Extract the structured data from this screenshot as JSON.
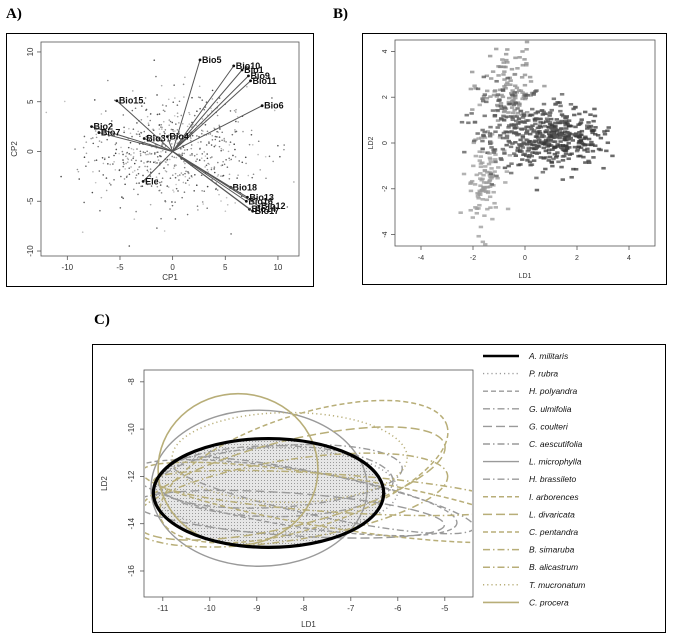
{
  "panels": {
    "a_tag": "A)",
    "b_tag": "B)",
    "c_tag": "C)"
  },
  "chart_data": [
    {
      "type": "scatter",
      "panel": "A",
      "title": "",
      "xlabel": "CP1",
      "ylabel": "CP2",
      "xlim": [
        -12.5,
        12
      ],
      "ylim": [
        -10.5,
        11
      ],
      "xticks": [
        -10,
        -5,
        0,
        5,
        10
      ],
      "yticks": [
        -10,
        -5,
        0,
        5,
        10
      ],
      "grid": false,
      "biplot_vectors": [
        {
          "label": "Bio5",
          "x": 2.6,
          "y": 9.2
        },
        {
          "label": "Bio10",
          "x": 5.8,
          "y": 8.6
        },
        {
          "label": "Bio1",
          "x": 6.6,
          "y": 8.2
        },
        {
          "label": "Bio9",
          "x": 7.2,
          "y": 7.6
        },
        {
          "label": "Bio11",
          "x": 7.4,
          "y": 7.1
        },
        {
          "label": "Bio6",
          "x": 8.5,
          "y": 4.6
        },
        {
          "label": "Bio15",
          "x": -5.3,
          "y": 5.1
        },
        {
          "label": "Bio2",
          "x": -7.7,
          "y": 2.5
        },
        {
          "label": "Bio7",
          "x": -7.0,
          "y": 1.9
        },
        {
          "label": "Bio3",
          "x": -2.7,
          "y": 1.3
        },
        {
          "label": "Bio4",
          "x": -0.5,
          "y": 1.5
        },
        {
          "label": "Ele",
          "x": -2.8,
          "y": -3.0
        },
        {
          "label": "Bio18",
          "x": 5.5,
          "y": -3.6
        },
        {
          "label": "Bio13",
          "x": 7.1,
          "y": -4.6
        },
        {
          "label": "Bio16",
          "x": 7.0,
          "y": -5.0
        },
        {
          "label": "Bio12",
          "x": 8.2,
          "y": -5.5
        },
        {
          "label": "Bio14",
          "x": 7.3,
          "y": -5.8
        },
        {
          "label": "Bio17",
          "x": 7.6,
          "y": -6.0
        }
      ],
      "point_cloud": {
        "center": [
          0,
          0
        ],
        "spread": [
          4.0,
          2.8
        ],
        "count": 650
      }
    },
    {
      "type": "scatter",
      "panel": "B",
      "title": "",
      "xlabel": "LD1",
      "ylabel": "LD2",
      "xlim": [
        -5,
        5
      ],
      "ylim": [
        -4.5,
        4.5
      ],
      "xticks": [
        -4,
        -2,
        0,
        2,
        4
      ],
      "yticks": [
        -4,
        -2,
        0,
        2,
        4
      ],
      "grid": false,
      "point_clusters": [
        {
          "center": [
            1.2,
            0.2
          ],
          "spread": [
            0.9,
            0.6
          ],
          "count": 320,
          "shade": "#3a3a3a"
        },
        {
          "center": [
            -0.6,
            2.3
          ],
          "spread": [
            0.6,
            0.9
          ],
          "count": 120,
          "shade": "#8a8a8a"
        },
        {
          "center": [
            -1.6,
            -1.6
          ],
          "spread": [
            0.35,
            1.1
          ],
          "count": 110,
          "shade": "#9a9a9a"
        },
        {
          "center": [
            -0.1,
            0.6
          ],
          "spread": [
            1.0,
            0.8
          ],
          "count": 200,
          "shade": "#555555"
        }
      ]
    },
    {
      "type": "ellipse",
      "panel": "C",
      "title": "",
      "xlabel": "LD1",
      "ylabel": "LD2",
      "xlim": [
        -11.4,
        -4.4
      ],
      "ylim": [
        -17.1,
        -7.5
      ],
      "xticks": [
        -11,
        -10,
        -9,
        -8,
        -7,
        -6,
        -5
      ],
      "yticks": [
        -8,
        -10,
        -12,
        -14,
        -16
      ],
      "grid": false,
      "legend_position": "right",
      "series": [
        {
          "name": "A. militaris",
          "style": "solid",
          "color": "#000000",
          "width": 3.2,
          "cx": -8.75,
          "cy": -12.7,
          "rx": 2.45,
          "ry": 2.3,
          "angle": 0,
          "filled": true
        },
        {
          "name": "P. rubra",
          "style": "dotted",
          "color": "#9a9a9a",
          "width": 1.4,
          "cx": -8.6,
          "cy": -12.6,
          "rx": 2.6,
          "ry": 1.8,
          "angle": 0
        },
        {
          "name": "H. polyandra",
          "style": "dash",
          "color": "#9a9a9a",
          "width": 1.4,
          "cx": -8.2,
          "cy": -12.9,
          "rx": 3.5,
          "ry": 1.2,
          "angle": 9
        },
        {
          "name": "G. ulmifolia",
          "style": "dashdot",
          "color": "#9a9a9a",
          "width": 1.4,
          "cx": -8.5,
          "cy": -12.0,
          "rx": 2.6,
          "ry": 1.3,
          "angle": -4
        },
        {
          "name": "G. coulteri",
          "style": "longdash",
          "color": "#9a9a9a",
          "width": 1.4,
          "cx": -8.3,
          "cy": -13.6,
          "rx": 3.3,
          "ry": 0.9,
          "angle": 4
        },
        {
          "name": "C. aescutifolia",
          "style": "dashdot",
          "color": "#9a9a9a",
          "width": 1.4,
          "cx": -8.6,
          "cy": -12.2,
          "rx": 2.5,
          "ry": 1.5,
          "angle": 0
        },
        {
          "name": "L. microphylla",
          "style": "solid",
          "color": "#9a9a9a",
          "width": 1.4,
          "cx": -8.95,
          "cy": -12.5,
          "rx": 2.3,
          "ry": 3.3,
          "angle": 0
        },
        {
          "name": "H. brassileto",
          "style": "dashdot",
          "color": "#9a9a9a",
          "width": 1.4,
          "cx": -7.6,
          "cy": -12.8,
          "rx": 3.3,
          "ry": 0.9,
          "angle": 12
        },
        {
          "name": "I. arborences",
          "style": "dash",
          "color": "#b8ae78",
          "width": 1.5,
          "cx": -8.0,
          "cy": -11.8,
          "rx": 3.2,
          "ry": 2.4,
          "angle": -18
        },
        {
          "name": "L. divaricata",
          "style": "longdash",
          "color": "#b8ae78",
          "width": 1.5,
          "cx": -8.3,
          "cy": -12.3,
          "rx": 3.4,
          "ry": 1.8,
          "angle": -14
        },
        {
          "name": "C. pentandra",
          "style": "dash",
          "color": "#b8ae78",
          "width": 1.5,
          "cx": -7.3,
          "cy": -13.1,
          "rx": 4.2,
          "ry": 1.1,
          "angle": 9
        },
        {
          "name": "B. simaruba",
          "style": "dashdot",
          "color": "#b8ae78",
          "width": 1.5,
          "cx": -8.3,
          "cy": -13.0,
          "rx": 3.4,
          "ry": 1.7,
          "angle": -9
        },
        {
          "name": "B. alicastrum",
          "style": "dashdot",
          "color": "#b8ae78",
          "width": 1.5,
          "cx": -7.4,
          "cy": -12.7,
          "rx": 3.8,
          "ry": 0.8,
          "angle": 4
        },
        {
          "name": "T. mucronatum",
          "style": "dotted",
          "color": "#b8ae78",
          "width": 1.5,
          "cx": -8.3,
          "cy": -11.2,
          "rx": 2.5,
          "ry": 1.9,
          "angle": 0
        },
        {
          "name": "C. procera",
          "style": "solid",
          "color": "#b8ae78",
          "width": 1.6,
          "cx": -9.4,
          "cy": -11.7,
          "rx": 1.7,
          "ry": 3.2,
          "angle": 0
        }
      ]
    }
  ]
}
